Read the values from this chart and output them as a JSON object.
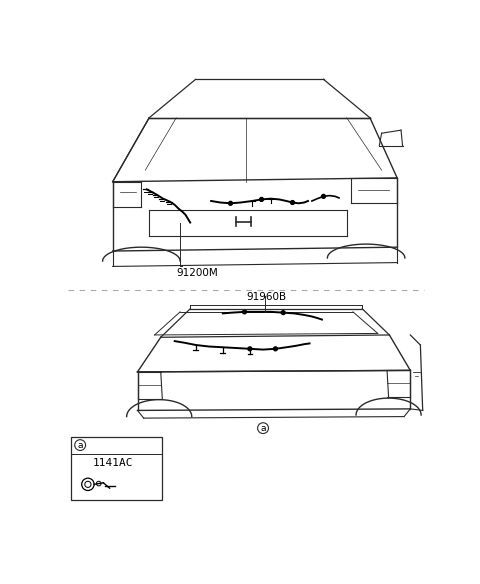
{
  "background_color": "#ffffff",
  "fig_width": 4.8,
  "fig_height": 5.84,
  "dpi": 100,
  "label_top": "91200M",
  "label_mid": "91960B",
  "label_box": "1141AC",
  "label_a": "a",
  "divider_color": "#aaaaaa",
  "line_color": "#2a2a2a",
  "wiring_color": "#000000"
}
